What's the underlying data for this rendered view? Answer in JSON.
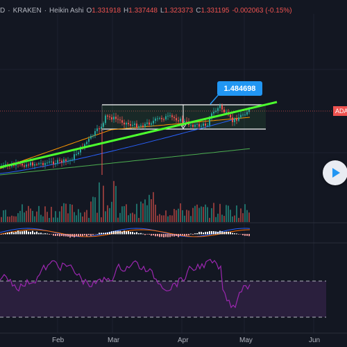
{
  "header": {
    "symbol_fragment": "D",
    "exchange": "KRAKEN",
    "chart_style": "Heikin Ashi",
    "open_label": "O",
    "open_value": "1.331918",
    "high_label": "H",
    "high_value": "1.337448",
    "low_label": "L",
    "low_value": "1.323373",
    "close_label": "C",
    "close_value": "1.331195",
    "change": "-0.002063 (-0.15%)",
    "separator": "·"
  },
  "callout": {
    "price": "1.484698"
  },
  "price_axis": {
    "label": "ADA"
  },
  "time_axis": {
    "months": [
      "Feb",
      "Mar",
      "Apr",
      "May",
      "Jun"
    ]
  },
  "colors": {
    "background": "#131722",
    "bullish": "#26a69a",
    "bearish": "#ef5350",
    "trendline": "#4cff2e",
    "rsi_line": "#9c27b0",
    "rsi_band": "#2a1f3d",
    "callout": "#2196f3",
    "ma_long": "#4caf50",
    "ma_mid": "#2962ff",
    "ma_short": "#ff9800"
  },
  "controls": {
    "scroll_to_realtime_icon": "play-icon"
  }
}
